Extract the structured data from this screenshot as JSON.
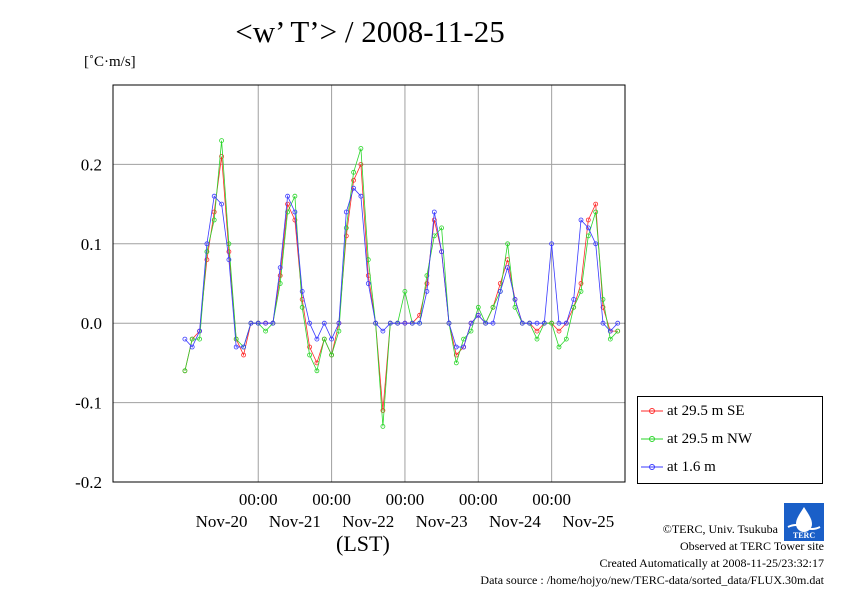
{
  "title": "<w’ T’> / 2008-11-25",
  "unit": "[˚C·m/s]",
  "xaxis_title": "(LST)",
  "credits": {
    "copyright": "©TERC, Univ. Tsukuba",
    "observed": "Observed at TERC Tower site",
    "created": "Created Automatically at 2008-11-25/23:32:17",
    "source": "Data source : /home/hojyo/new/TERC-data/sorted_data/FLUX.30m.dat"
  },
  "logo": {
    "text": "TERC",
    "icon": "terc-logo-icon",
    "color": "#1a5fc8"
  },
  "chart_data": {
    "type": "line",
    "title": "<w’ T’> / 2008-11-25",
    "ylabel": "[˚C·m/s]",
    "xlabel": "(LST)",
    "ylim": [
      -0.2,
      0.3
    ],
    "yticks": [
      0.2,
      0.1,
      0.0,
      -0.1,
      -0.2
    ],
    "ytick_labels": [
      "0.2",
      "0.1",
      "0.0",
      "-0.1",
      "-0.2"
    ],
    "xlim_days": [
      -0.98,
      6.0
    ],
    "xticks": [
      1,
      2,
      3,
      4,
      5
    ],
    "xtick_time_labels": [
      "00:00",
      "00:00",
      "00:00",
      "00:00",
      "00:00"
    ],
    "xtick_date_labels": [
      "Nov-20",
      "Nov-21",
      "Nov-22",
      "Nov-23",
      "Nov-24",
      "Nov-25"
    ],
    "grid": true,
    "legend_placement": "bottom-right outside",
    "series": [
      {
        "name": "at 29.5 m SE",
        "color": "#ff2a2a",
        "x": [
          0.0,
          0.1,
          0.2,
          0.3,
          0.4,
          0.5,
          0.6,
          0.7,
          0.8,
          0.9,
          1.0,
          1.1,
          1.2,
          1.3,
          1.4,
          1.5,
          1.6,
          1.7,
          1.8,
          1.9,
          2.0,
          2.1,
          2.2,
          2.3,
          2.4,
          2.5,
          2.6,
          2.7,
          2.8,
          2.9,
          3.0,
          3.1,
          3.2,
          3.3,
          3.4,
          3.5,
          3.6,
          3.7,
          3.8,
          3.9,
          4.0,
          4.1,
          4.2,
          4.3,
          4.4,
          4.5,
          4.6,
          4.7,
          4.8,
          4.9,
          5.0,
          5.1,
          5.2,
          5.3,
          5.4,
          5.5,
          5.6,
          5.7,
          5.8,
          5.9
        ],
        "values": [
          -0.06,
          -0.02,
          -0.01,
          0.08,
          0.14,
          0.21,
          0.09,
          -0.02,
          -0.04,
          0.0,
          0.0,
          0.0,
          0.0,
          0.06,
          0.15,
          0.13,
          0.03,
          -0.03,
          -0.05,
          -0.02,
          -0.04,
          0.0,
          0.11,
          0.18,
          0.2,
          0.06,
          0.0,
          -0.11,
          0.0,
          0.0,
          0.0,
          0.0,
          0.01,
          0.05,
          0.13,
          0.09,
          0.0,
          -0.04,
          -0.03,
          0.0,
          0.01,
          0.0,
          0.02,
          0.05,
          0.08,
          0.03,
          0.0,
          0.0,
          -0.01,
          0.0,
          0.0,
          -0.01,
          0.0,
          0.02,
          0.05,
          0.13,
          0.15,
          0.02,
          -0.01,
          -0.01
        ]
      },
      {
        "name": "at 29.5 m NW",
        "color": "#2ad62a",
        "x": [
          0.0,
          0.1,
          0.2,
          0.3,
          0.4,
          0.5,
          0.6,
          0.7,
          0.8,
          0.9,
          1.0,
          1.1,
          1.2,
          1.3,
          1.4,
          1.5,
          1.6,
          1.7,
          1.8,
          1.9,
          2.0,
          2.1,
          2.2,
          2.3,
          2.4,
          2.5,
          2.6,
          2.7,
          2.8,
          2.9,
          3.0,
          3.1,
          3.2,
          3.3,
          3.4,
          3.5,
          3.6,
          3.7,
          3.8,
          3.9,
          4.0,
          4.1,
          4.2,
          4.3,
          4.4,
          4.5,
          4.6,
          4.7,
          4.8,
          4.9,
          5.0,
          5.1,
          5.2,
          5.3,
          5.4,
          5.5,
          5.6,
          5.7,
          5.8,
          5.9
        ],
        "values": [
          -0.06,
          -0.02,
          -0.02,
          0.09,
          0.13,
          0.23,
          0.1,
          -0.02,
          -0.03,
          0.0,
          0.0,
          -0.01,
          0.0,
          0.05,
          0.14,
          0.16,
          0.02,
          -0.04,
          -0.06,
          -0.02,
          -0.04,
          -0.01,
          0.12,
          0.19,
          0.22,
          0.08,
          0.0,
          -0.13,
          0.0,
          0.0,
          0.04,
          0.0,
          0.0,
          0.06,
          0.11,
          0.12,
          0.0,
          -0.05,
          -0.02,
          -0.01,
          0.02,
          0.0,
          0.02,
          0.04,
          0.1,
          0.02,
          0.0,
          0.0,
          -0.02,
          0.0,
          0.0,
          -0.03,
          -0.02,
          0.02,
          0.04,
          0.11,
          0.14,
          0.03,
          -0.02,
          -0.01
        ]
      },
      {
        "name": "at 1.6 m",
        "color": "#3a3aff",
        "x": [
          0.0,
          0.1,
          0.2,
          0.3,
          0.4,
          0.5,
          0.6,
          0.7,
          0.8,
          0.9,
          1.0,
          1.1,
          1.2,
          1.3,
          1.4,
          1.5,
          1.6,
          1.7,
          1.8,
          1.9,
          2.0,
          2.1,
          2.2,
          2.3,
          2.4,
          2.5,
          2.6,
          2.7,
          2.8,
          2.9,
          3.0,
          3.1,
          3.2,
          3.3,
          3.4,
          3.5,
          3.6,
          3.7,
          3.8,
          3.9,
          4.0,
          4.1,
          4.2,
          4.3,
          4.4,
          4.5,
          4.6,
          4.7,
          4.8,
          4.9,
          5.0,
          5.1,
          5.2,
          5.3,
          5.4,
          5.5,
          5.6,
          5.7,
          5.8,
          5.9
        ],
        "values": [
          -0.02,
          -0.03,
          -0.01,
          0.1,
          0.16,
          0.15,
          0.08,
          -0.03,
          -0.03,
          0.0,
          0.0,
          0.0,
          0.0,
          0.07,
          0.16,
          0.14,
          0.04,
          0.0,
          -0.02,
          0.0,
          -0.02,
          0.0,
          0.14,
          0.17,
          0.16,
          0.05,
          0.0,
          -0.01,
          0.0,
          0.0,
          0.0,
          0.0,
          0.0,
          0.04,
          0.14,
          0.09,
          0.0,
          -0.03,
          -0.03,
          0.0,
          0.01,
          0.0,
          0.0,
          0.04,
          0.07,
          0.03,
          0.0,
          0.0,
          0.0,
          0.0,
          0.1,
          0.0,
          0.0,
          0.03,
          0.13,
          0.12,
          0.1,
          0.0,
          -0.01,
          0.0
        ]
      }
    ]
  }
}
